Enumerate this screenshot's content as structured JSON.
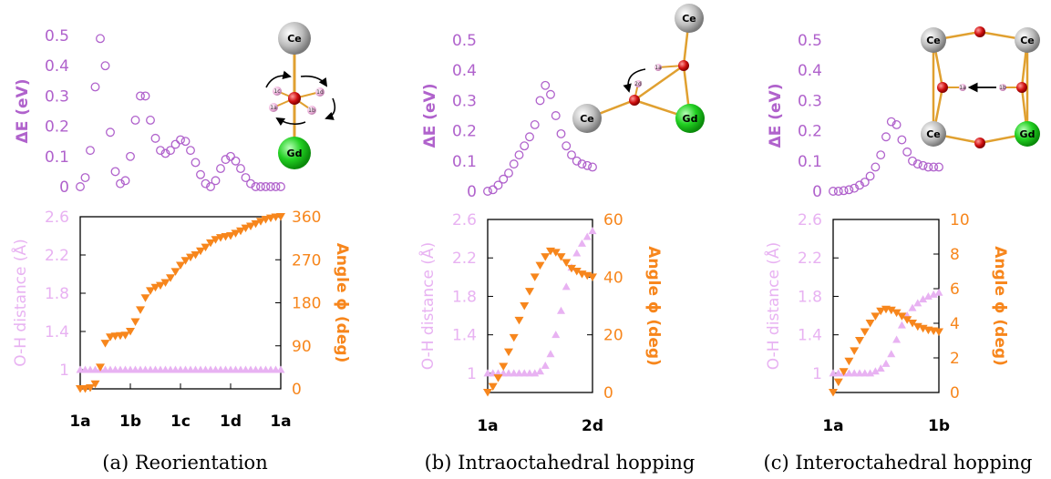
{
  "colors": {
    "energy": "#b062cc",
    "oh": "#e8b2f2",
    "angle": "#f7861c",
    "axis": "#000000"
  },
  "chart_data": [
    {
      "type": "scatter",
      "panel": "a",
      "caption": "(a) Reorientation",
      "energy": {
        "ylabel": "ΔE (eV)",
        "ylim": [
          0,
          0.5
        ],
        "yticks": [
          "0",
          "0.1",
          "0.2",
          "0.3",
          "0.4",
          "0.5"
        ],
        "x": [
          0,
          0.1,
          0.2,
          0.3,
          0.4,
          0.5,
          0.6,
          0.7,
          0.8,
          0.9,
          1.0,
          1.1,
          1.2,
          1.3,
          1.4,
          1.5,
          1.6,
          1.7,
          1.8,
          1.9,
          2.0,
          2.1,
          2.2,
          2.3,
          2.4,
          2.5,
          2.6,
          2.7,
          2.8,
          2.9,
          3.0,
          3.1,
          3.2,
          3.3,
          3.4,
          3.5,
          3.6,
          3.7,
          3.8,
          3.9,
          4.0
        ],
        "y": [
          0.0,
          0.03,
          0.12,
          0.33,
          0.49,
          0.4,
          0.18,
          0.05,
          0.01,
          0.02,
          0.1,
          0.22,
          0.3,
          0.3,
          0.22,
          0.16,
          0.12,
          0.11,
          0.12,
          0.14,
          0.155,
          0.15,
          0.12,
          0.08,
          0.04,
          0.01,
          0.0,
          0.02,
          0.06,
          0.09,
          0.1,
          0.085,
          0.06,
          0.03,
          0.01,
          0.0,
          0.0,
          0.0,
          0.0,
          0.0,
          0.0
        ]
      },
      "oh": {
        "ylabel": "O-H distance (Å)",
        "ylim": [
          0.8,
          2.6
        ],
        "yticks": [
          "1",
          "1.4",
          "1.8",
          "2.2",
          "2.6"
        ],
        "x": [
          0,
          0.1,
          0.2,
          0.3,
          0.4,
          0.5,
          0.6,
          0.7,
          0.8,
          0.9,
          1.0,
          1.1,
          1.2,
          1.3,
          1.4,
          1.5,
          1.6,
          1.7,
          1.8,
          1.9,
          2.0,
          2.1,
          2.2,
          2.3,
          2.4,
          2.5,
          2.6,
          2.7,
          2.8,
          2.9,
          3.0,
          3.1,
          3.2,
          3.3,
          3.4,
          3.5,
          3.6,
          3.7,
          3.8,
          3.9,
          4.0
        ],
        "y": [
          1.0,
          1.0,
          1.0,
          1.0,
          1.0,
          1.0,
          1.0,
          1.0,
          1.0,
          1.0,
          1.0,
          1.0,
          1.0,
          1.0,
          1.0,
          1.0,
          1.0,
          1.0,
          1.0,
          1.0,
          1.0,
          1.0,
          1.0,
          1.0,
          1.0,
          1.0,
          1.0,
          1.0,
          1.0,
          1.0,
          1.0,
          1.0,
          1.0,
          1.0,
          1.0,
          1.0,
          1.0,
          1.0,
          1.0,
          1.0,
          1.0
        ]
      },
      "angle": {
        "ylabel": "Angle ϕ (deg)",
        "ylim": [
          0,
          360
        ],
        "yticks": [
          "0",
          "90",
          "180",
          "270",
          "360"
        ],
        "x": [
          0,
          0.1,
          0.2,
          0.3,
          0.4,
          0.5,
          0.6,
          0.7,
          0.8,
          0.9,
          1.0,
          1.1,
          1.2,
          1.3,
          1.4,
          1.5,
          1.6,
          1.7,
          1.8,
          1.9,
          2.0,
          2.1,
          2.2,
          2.3,
          2.4,
          2.5,
          2.6,
          2.7,
          2.8,
          2.9,
          3.0,
          3.1,
          3.2,
          3.3,
          3.4,
          3.5,
          3.6,
          3.7,
          3.8,
          3.9,
          4.0
        ],
        "y": [
          0,
          0,
          2,
          10,
          45,
          95,
          108,
          110,
          111,
          112,
          120,
          140,
          165,
          190,
          205,
          212,
          216,
          222,
          232,
          245,
          258,
          268,
          275,
          280,
          288,
          296,
          305,
          312,
          316,
          318,
          320,
          325,
          330,
          336,
          340,
          345,
          350,
          354,
          357,
          359,
          360
        ]
      },
      "xticks": [
        {
          "pos": 0,
          "label": "1a"
        },
        {
          "pos": 1,
          "label": "1b"
        },
        {
          "pos": 2,
          "label": "1c"
        },
        {
          "pos": 3,
          "label": "1d"
        },
        {
          "pos": 4,
          "label": "1a"
        }
      ],
      "xlim": [
        0,
        4
      ]
    },
    {
      "type": "scatter",
      "panel": "b",
      "caption": "(b) Intraoctahedral hopping",
      "energy": {
        "ylabel": "ΔE (eV)",
        "ylim": [
          0,
          0.5
        ],
        "yticks": [
          "0",
          "0.1",
          "0.2",
          "0.3",
          "0.4",
          "0.5"
        ],
        "x": [
          0,
          0.05,
          0.1,
          0.15,
          0.2,
          0.25,
          0.3,
          0.35,
          0.4,
          0.45,
          0.5,
          0.55,
          0.6,
          0.65,
          0.7,
          0.75,
          0.8,
          0.85,
          0.9,
          0.95,
          1.0
        ],
        "y": [
          0.0,
          0.005,
          0.02,
          0.04,
          0.06,
          0.09,
          0.12,
          0.15,
          0.18,
          0.22,
          0.3,
          0.35,
          0.32,
          0.25,
          0.19,
          0.15,
          0.12,
          0.1,
          0.09,
          0.085,
          0.08
        ]
      },
      "oh": {
        "ylabel": "O-H distance (Å)",
        "ylim": [
          0.8,
          2.6
        ],
        "yticks": [
          "1",
          "1.4",
          "1.8",
          "2.2",
          "2.6"
        ],
        "x": [
          0,
          0.05,
          0.1,
          0.15,
          0.2,
          0.25,
          0.3,
          0.35,
          0.4,
          0.45,
          0.5,
          0.55,
          0.6,
          0.65,
          0.7,
          0.75,
          0.8,
          0.85,
          0.9,
          0.95,
          1.0
        ],
        "y": [
          1.0,
          1.0,
          1.0,
          1.0,
          1.0,
          1.0,
          1.0,
          1.0,
          1.0,
          1.0,
          1.02,
          1.08,
          1.2,
          1.4,
          1.65,
          1.9,
          2.1,
          2.25,
          2.35,
          2.42,
          2.48
        ]
      },
      "angle": {
        "ylabel": "Angle ϕ (deg)",
        "ylim": [
          0,
          60
        ],
        "yticks": [
          "0",
          "20",
          "40",
          "60"
        ],
        "x": [
          0,
          0.05,
          0.1,
          0.15,
          0.2,
          0.25,
          0.3,
          0.35,
          0.4,
          0.45,
          0.5,
          0.55,
          0.6,
          0.65,
          0.7,
          0.75,
          0.8,
          0.85,
          0.9,
          0.95,
          1.0
        ],
        "y": [
          0,
          2,
          5,
          9,
          14,
          19,
          25,
          30,
          35,
          40,
          44,
          47,
          49,
          48.5,
          47,
          45,
          43,
          42,
          41,
          40.5,
          40
        ]
      },
      "xticks": [
        {
          "pos": 0,
          "label": "1a"
        },
        {
          "pos": 1,
          "label": "2d"
        }
      ],
      "xlim": [
        0,
        1
      ]
    },
    {
      "type": "scatter",
      "panel": "c",
      "caption": "(c) Interoctahedral hopping",
      "energy": {
        "ylabel": "ΔE (eV)",
        "ylim": [
          0,
          0.5
        ],
        "yticks": [
          "0",
          "0.1",
          "0.2",
          "0.3",
          "0.4",
          "0.5"
        ],
        "x": [
          0,
          0.05,
          0.1,
          0.15,
          0.2,
          0.25,
          0.3,
          0.35,
          0.4,
          0.45,
          0.5,
          0.55,
          0.6,
          0.65,
          0.7,
          0.75,
          0.8,
          0.85,
          0.9,
          0.95,
          1.0
        ],
        "y": [
          0.0,
          0.0,
          0.002,
          0.005,
          0.01,
          0.02,
          0.03,
          0.05,
          0.08,
          0.12,
          0.18,
          0.23,
          0.22,
          0.17,
          0.13,
          0.1,
          0.09,
          0.085,
          0.08,
          0.08,
          0.08
        ]
      },
      "oh": {
        "ylabel": "O-H distance (Å)",
        "ylim": [
          0.8,
          2.6
        ],
        "yticks": [
          "1",
          "1.4",
          "1.8",
          "2.2",
          "2.6"
        ],
        "x": [
          0,
          0.05,
          0.1,
          0.15,
          0.2,
          0.25,
          0.3,
          0.35,
          0.4,
          0.45,
          0.5,
          0.55,
          0.6,
          0.65,
          0.7,
          0.75,
          0.8,
          0.85,
          0.9,
          0.95,
          1.0
        ],
        "y": [
          1.0,
          1.0,
          1.0,
          1.0,
          1.0,
          1.0,
          1.0,
          1.0,
          1.02,
          1.05,
          1.1,
          1.2,
          1.35,
          1.5,
          1.6,
          1.68,
          1.73,
          1.77,
          1.8,
          1.82,
          1.84
        ]
      },
      "angle": {
        "ylabel": "Angle ϕ (deg)",
        "ylim": [
          0,
          10
        ],
        "yticks": [
          "0",
          "2",
          "4",
          "6",
          "8",
          "10"
        ],
        "x": [
          0,
          0.05,
          0.1,
          0.15,
          0.2,
          0.25,
          0.3,
          0.35,
          0.4,
          0.45,
          0.5,
          0.55,
          0.6,
          0.65,
          0.7,
          0.75,
          0.8,
          0.85,
          0.9,
          0.95,
          1.0
        ],
        "y": [
          0,
          0.6,
          1.2,
          1.8,
          2.4,
          3.0,
          3.5,
          4.0,
          4.4,
          4.7,
          4.8,
          4.75,
          4.6,
          4.4,
          4.2,
          4.0,
          3.8,
          3.7,
          3.6,
          3.55,
          3.5
        ]
      },
      "xticks": [
        {
          "pos": 0,
          "label": "1a"
        },
        {
          "pos": 1,
          "label": "1b"
        }
      ],
      "xlim": [
        0,
        1
      ]
    }
  ],
  "insets": {
    "a": {
      "atoms": {
        "top": "Ce",
        "bottom": "Gd"
      },
      "h_labels": [
        "1a",
        "1b",
        "1c",
        "1d"
      ]
    },
    "b": {
      "atoms": {
        "top": "Ce",
        "left": "Ce",
        "right": "Gd"
      },
      "h_labels": [
        "1a",
        "2d"
      ]
    },
    "c": {
      "atoms": {
        "tl": "Ce",
        "tr": "Ce",
        "bl": "Ce",
        "br": "Gd"
      },
      "h_labels": [
        "1a",
        "1b"
      ]
    }
  }
}
